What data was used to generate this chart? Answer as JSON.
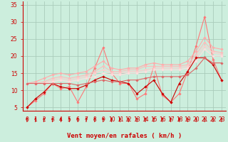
{
  "background_color": "#cceedd",
  "grid_color": "#aaccbb",
  "xlabel": "Vent moyen/en rafales ( km/h )",
  "xlim": [
    -0.5,
    23.5
  ],
  "ylim": [
    4,
    36
  ],
  "yticks": [
    5,
    10,
    15,
    20,
    25,
    30,
    35
  ],
  "xticks": [
    0,
    1,
    2,
    3,
    4,
    5,
    6,
    7,
    8,
    9,
    10,
    11,
    12,
    13,
    14,
    15,
    16,
    17,
    18,
    19,
    20,
    21,
    22,
    23
  ],
  "lines": [
    {
      "x": [
        0,
        1,
        2,
        3,
        4,
        5,
        6,
        7,
        8,
        9,
        10,
        11,
        12,
        13,
        14,
        15,
        16,
        17,
        18,
        19,
        20,
        21,
        22,
        23
      ],
      "y": [
        5.0,
        7.0,
        9.0,
        12.0,
        10.5,
        11.0,
        6.5,
        11.0,
        16.5,
        22.5,
        15.0,
        12.0,
        12.0,
        7.5,
        9.0,
        17.0,
        8.5,
        6.5,
        9.0,
        15.5,
        23.0,
        31.5,
        19.0,
        13.0
      ],
      "color": "#ff7777",
      "lw": 0.8,
      "marker": "D",
      "ms": 1.8
    },
    {
      "x": [
        0,
        1,
        2,
        3,
        4,
        5,
        6,
        7,
        8,
        9,
        10,
        11,
        12,
        13,
        14,
        15,
        16,
        17,
        18,
        19,
        20,
        21,
        22,
        23
      ],
      "y": [
        12.0,
        12.5,
        13.5,
        14.5,
        15.0,
        14.5,
        15.0,
        15.5,
        17.0,
        18.5,
        16.5,
        16.0,
        16.5,
        16.5,
        17.5,
        18.0,
        17.5,
        17.5,
        17.5,
        18.5,
        21.5,
        25.5,
        22.5,
        22.0
      ],
      "color": "#ffaaaa",
      "lw": 0.8,
      "marker": "D",
      "ms": 1.8
    },
    {
      "x": [
        0,
        1,
        2,
        3,
        4,
        5,
        6,
        7,
        8,
        9,
        10,
        11,
        12,
        13,
        14,
        15,
        16,
        17,
        18,
        19,
        20,
        21,
        22,
        23
      ],
      "y": [
        12.0,
        12.0,
        12.5,
        13.5,
        14.0,
        13.5,
        14.0,
        14.5,
        15.5,
        17.0,
        15.5,
        15.5,
        16.0,
        16.0,
        17.0,
        17.0,
        17.0,
        17.0,
        17.0,
        17.5,
        20.5,
        24.0,
        21.5,
        21.0
      ],
      "color": "#ffbbbb",
      "lw": 0.8,
      "marker": "D",
      "ms": 1.8
    },
    {
      "x": [
        0,
        1,
        2,
        3,
        4,
        5,
        6,
        7,
        8,
        9,
        10,
        11,
        12,
        13,
        14,
        15,
        16,
        17,
        18,
        19,
        20,
        21,
        22,
        23
      ],
      "y": [
        12.0,
        12.0,
        12.0,
        13.0,
        13.5,
        13.0,
        13.5,
        14.0,
        15.0,
        16.0,
        15.0,
        15.0,
        15.5,
        15.5,
        16.0,
        16.5,
        16.5,
        16.5,
        16.5,
        17.0,
        19.5,
        23.0,
        21.0,
        20.5
      ],
      "color": "#ffcccc",
      "lw": 0.8,
      "marker": "D",
      "ms": 1.8
    },
    {
      "x": [
        0,
        1,
        2,
        3,
        4,
        5,
        6,
        7,
        8,
        9,
        10,
        11,
        12,
        13,
        14,
        15,
        16,
        17,
        18,
        19,
        20,
        21,
        22,
        23
      ],
      "y": [
        12.0,
        12.0,
        12.0,
        12.5,
        13.0,
        12.5,
        13.0,
        13.5,
        14.0,
        15.0,
        14.5,
        14.5,
        15.0,
        15.0,
        15.5,
        16.0,
        16.0,
        16.0,
        16.0,
        16.5,
        18.5,
        22.0,
        20.0,
        20.0
      ],
      "color": "#ffdddd",
      "lw": 0.8,
      "marker": "D",
      "ms": 1.8
    },
    {
      "x": [
        0,
        1,
        2,
        3,
        4,
        5,
        6,
        7,
        8,
        9,
        10,
        11,
        12,
        13,
        14,
        15,
        16,
        17,
        18,
        19,
        20,
        21,
        22,
        23
      ],
      "y": [
        5.0,
        7.5,
        9.5,
        12.0,
        11.0,
        10.5,
        10.5,
        11.5,
        13.0,
        14.0,
        13.0,
        12.5,
        12.0,
        9.0,
        11.0,
        13.0,
        9.0,
        6.5,
        12.0,
        15.5,
        19.5,
        19.5,
        17.5,
        13.0
      ],
      "color": "#cc0000",
      "lw": 0.8,
      "marker": "D",
      "ms": 1.8
    },
    {
      "x": [
        0,
        1,
        2,
        3,
        4,
        5,
        6,
        7,
        8,
        9,
        10,
        11,
        12,
        13,
        14,
        15,
        16,
        17,
        18,
        19,
        20,
        21,
        22,
        23
      ],
      "y": [
        12.0,
        12.0,
        12.0,
        12.0,
        12.0,
        12.0,
        11.5,
        12.0,
        12.5,
        13.0,
        12.5,
        12.5,
        13.0,
        13.0,
        13.5,
        14.0,
        14.0,
        14.0,
        14.0,
        14.5,
        16.5,
        19.5,
        18.0,
        18.0
      ],
      "color": "#dd6666",
      "lw": 0.8,
      "marker": "D",
      "ms": 1.8
    }
  ],
  "accent_color": "#cc0000",
  "xlabel_fontsize": 6.5,
  "tick_fontsize": 5.5
}
